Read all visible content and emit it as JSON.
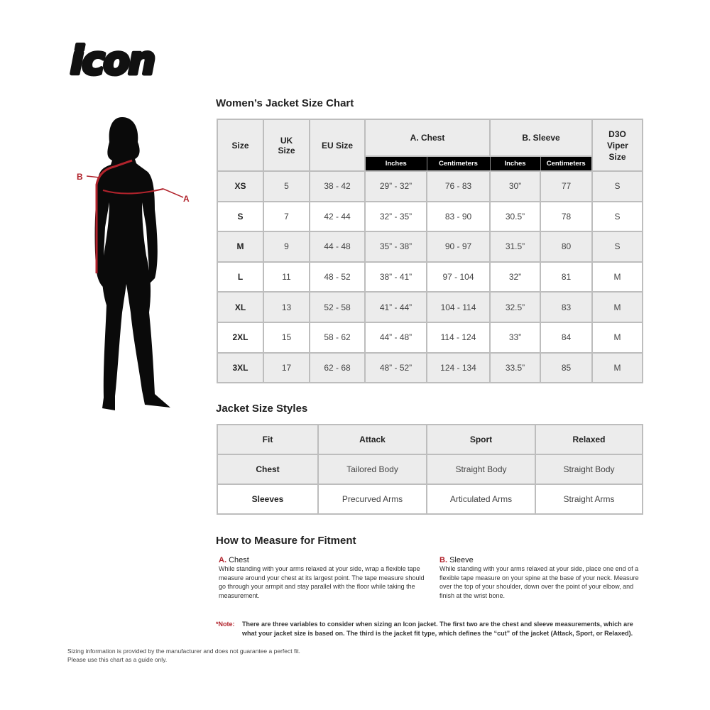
{
  "brand": {
    "logo_text": "icon"
  },
  "size_chart": {
    "title": "Women’s Jacket Size Chart",
    "headers": {
      "size": "Size",
      "uk": "UK Size",
      "eu": "EU Size",
      "chest": "A. Chest",
      "sleeve": "B. Sleeve",
      "d3o": "D3O Viper Size",
      "inches": "Inches",
      "cm": "Centimeters"
    },
    "rows": [
      [
        "XS",
        "5",
        "38 - 42",
        "29” - 32”",
        "76 - 83",
        "30”",
        "77",
        "S"
      ],
      [
        "S",
        "7",
        "42 - 44",
        "32” - 35”",
        "83 - 90",
        "30.5”",
        "78",
        "S"
      ],
      [
        "M",
        "9",
        "44 - 48",
        "35” - 38”",
        "90 - 97",
        "31.5”",
        "80",
        "S"
      ],
      [
        "L",
        "11",
        "48 - 52",
        "38” - 41”",
        "97 - 104",
        "32”",
        "81",
        "M"
      ],
      [
        "XL",
        "13",
        "52 - 58",
        "41” - 44”",
        "104 - 114",
        "32.5”",
        "83",
        "M"
      ],
      [
        "2XL",
        "15",
        "58 - 62",
        "44” - 48”",
        "114 - 124",
        "33”",
        "84",
        "M"
      ],
      [
        "3XL",
        "17",
        "62 - 68",
        "48” - 52”",
        "124 - 134",
        "33.5”",
        "85",
        "M"
      ]
    ]
  },
  "figure": {
    "label_a": "A",
    "label_b": "B",
    "accent": "#b1232c"
  },
  "styles": {
    "title": "Jacket Size Styles",
    "header": [
      "Fit",
      "Attack",
      "Sport",
      "Relaxed"
    ],
    "rows": [
      [
        "Chest",
        "Tailored Body",
        "Straight Body",
        "Straight Body"
      ],
      [
        "Sleeves",
        "Precurved Arms",
        "Articulated Arms",
        "Straight Arms"
      ]
    ]
  },
  "measure": {
    "title": "How to Measure for Fitment",
    "chest": {
      "letter": "A.",
      "label": "Chest",
      "text": "While standing with your arms relaxed at your side, wrap a flexible tape measure around your chest at its largest point. The tape measure should go through your armpit and stay parallel with the floor while taking the measurement."
    },
    "sleeve": {
      "letter": "B.",
      "label": "Sleeve",
      "text": "While standing with your arms relaxed at your side, place one end of a flexible tape measure on your spine at the base of your neck. Measure over the top of your shoulder, down over the point of your elbow, and finish at the wrist bone."
    },
    "note_label": "*Note:",
    "note": "There are three variables to consider when sizing an Icon jacket. The first two are the chest and sleeve measurements, which are what your jacket size is based on. The third is the jacket fit type, which defines the “cut” of the jacket (Attack, Sport, or Relaxed)."
  },
  "disclaimer": {
    "line1": "Sizing information is provided by the manufacturer and does not guarantee a perfect fit.",
    "line2": "Please use this chart as a guide only."
  }
}
